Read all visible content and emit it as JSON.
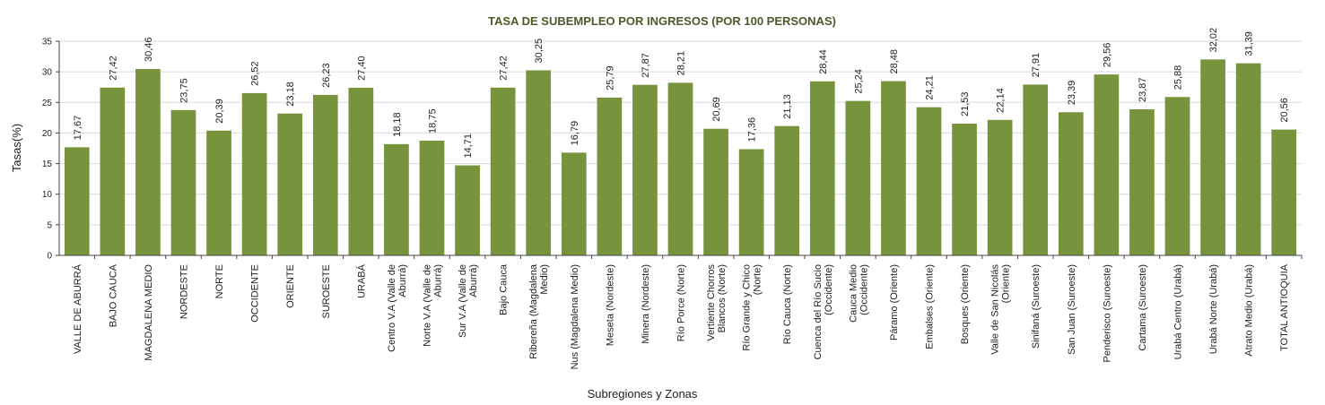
{
  "chart_data": {
    "type": "bar",
    "title": "TASA DE SUBEMPLEO POR INGRESOS (POR 100 PERSONAS)",
    "xlabel": "Subregiones y Zonas",
    "ylabel": "Tasas(%)",
    "ylim": [
      0,
      35
    ],
    "yticks": [
      0,
      5,
      10,
      15,
      20,
      25,
      30,
      35
    ],
    "grid": true,
    "bar_color": "#77933c",
    "categories": [
      [
        "VALLE DE ABURRÁ"
      ],
      [
        "BAJO CAUCA"
      ],
      [
        "MAGDALENA MEDIO"
      ],
      [
        "NORDESTE"
      ],
      [
        "NORTE"
      ],
      [
        "OCCIDENTE"
      ],
      [
        "ORIENTE"
      ],
      [
        "SUROESTE"
      ],
      [
        "URABÁ"
      ],
      [
        "Centro V.A (Valle de",
        "Aburrá)"
      ],
      [
        "Norte V.A (Valle de",
        "Aburrá)"
      ],
      [
        "Sur V.A (Valle de",
        "Aburrá)"
      ],
      [
        "Bajo Cauca"
      ],
      [
        "Ribereña  (Magdalena",
        "Medio)"
      ],
      [
        "Nus  (Magdalena Medio)"
      ],
      [
        "Meseta  (Nordeste)"
      ],
      [
        "Minera  (Nordeste)"
      ],
      [
        "Río Porce   (Norte)"
      ],
      [
        "Vertiente Chorros",
        "Blancos (Norte)"
      ],
      [
        "Río Grande y Chico",
        "(Norte)"
      ],
      [
        "Río Cauca  (Norte)"
      ],
      [
        "Cuenca del Río Sucio",
        "(Occidente)"
      ],
      [
        "Cauca Medio",
        "(Occidente)"
      ],
      [
        "Páramo  (Oriente)"
      ],
      [
        "Embalses  (Oriente)"
      ],
      [
        "Bosques  (Oriente)"
      ],
      [
        "Valle de San Nicolás",
        "(Oriente)"
      ],
      [
        "Sinifaná (Suroeste)"
      ],
      [
        "San Juan  (Suroeste)"
      ],
      [
        "Penderisco (Suroeste)"
      ],
      [
        "Cartama  (Suroeste)"
      ],
      [
        "Urabá Centro  (Urabá)"
      ],
      [
        "Urabá Norte  (Urabá)"
      ],
      [
        "Atrato Medio  (Urabá)"
      ],
      [
        "TOTAL ANTIOQUIA"
      ]
    ],
    "values": [
      17.67,
      27.42,
      30.46,
      23.75,
      20.39,
      26.52,
      23.18,
      26.23,
      27.4,
      18.18,
      18.75,
      14.71,
      27.42,
      30.25,
      16.79,
      25.79,
      27.87,
      28.21,
      20.69,
      17.36,
      21.13,
      28.44,
      25.24,
      28.48,
      24.21,
      21.53,
      22.14,
      27.91,
      23.39,
      29.56,
      23.87,
      25.88,
      32.02,
      31.39,
      20.56
    ],
    "labels": [
      "17,67",
      "27,42",
      "30,46",
      "23,75",
      "20,39",
      "26,52",
      "23,18",
      "26,23",
      "27,40",
      "18,18",
      "18,75",
      "14,71",
      "27,42",
      "30,25",
      "16,79",
      "25,79",
      "27,87",
      "28,21",
      "20,69",
      "17,36",
      "21,13",
      "28,44",
      "25,24",
      "28,48",
      "24,21",
      "21,53",
      "22,14",
      "27,91",
      "23,39",
      "29,56",
      "23,87",
      "25,88",
      "32,02",
      "31,39",
      "20,56"
    ]
  }
}
